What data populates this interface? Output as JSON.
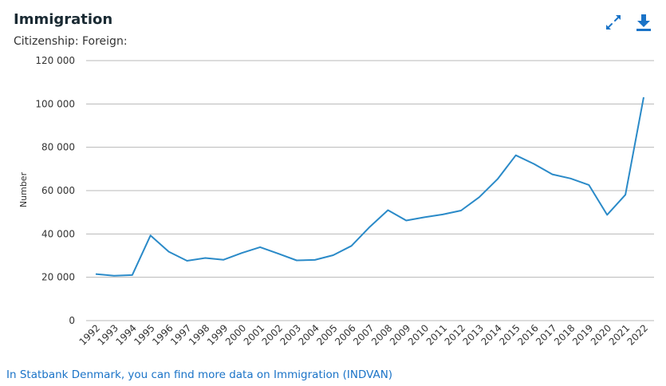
{
  "header": {
    "title": "Immigration",
    "subtitle": "Citizenship: Foreign:"
  },
  "toolbar": {
    "expand_icon": "expand-arrows-icon",
    "download_icon": "download-arrow-icon",
    "accent_color": "#1a73c7"
  },
  "footer": {
    "link_text": "In Statbank Denmark, you can find more data on Immigration (INDVAN)"
  },
  "chart_data": {
    "type": "line",
    "ylabel": "Number",
    "ylim": [
      0,
      120000
    ],
    "yticks": [
      0,
      20000,
      40000,
      60000,
      80000,
      100000,
      120000
    ],
    "ytick_labels": [
      "0",
      "20 000",
      "40 000",
      "60 000",
      "80 000",
      "100 000",
      "120 000"
    ],
    "grid": true,
    "line_color": "#2a8ac8",
    "categories": [
      "1992",
      "1993",
      "1994",
      "1995",
      "1996",
      "1997",
      "1998",
      "1999",
      "2000",
      "2001",
      "2002",
      "2003",
      "2004",
      "2005",
      "2006",
      "2007",
      "2008",
      "2009",
      "2010",
      "2011",
      "2012",
      "2013",
      "2014",
      "2015",
      "2016",
      "2017",
      "2018",
      "2019",
      "2020",
      "2021",
      "2022"
    ],
    "values": [
      21500,
      20700,
      21000,
      39300,
      31800,
      27600,
      28900,
      28100,
      31200,
      33900,
      30900,
      27800,
      28000,
      30200,
      34500,
      43200,
      51000,
      46200,
      47700,
      49000,
      50800,
      57000,
      65300,
      76300,
      72300,
      67500,
      65600,
      62600,
      48800,
      58100,
      103100
    ]
  }
}
